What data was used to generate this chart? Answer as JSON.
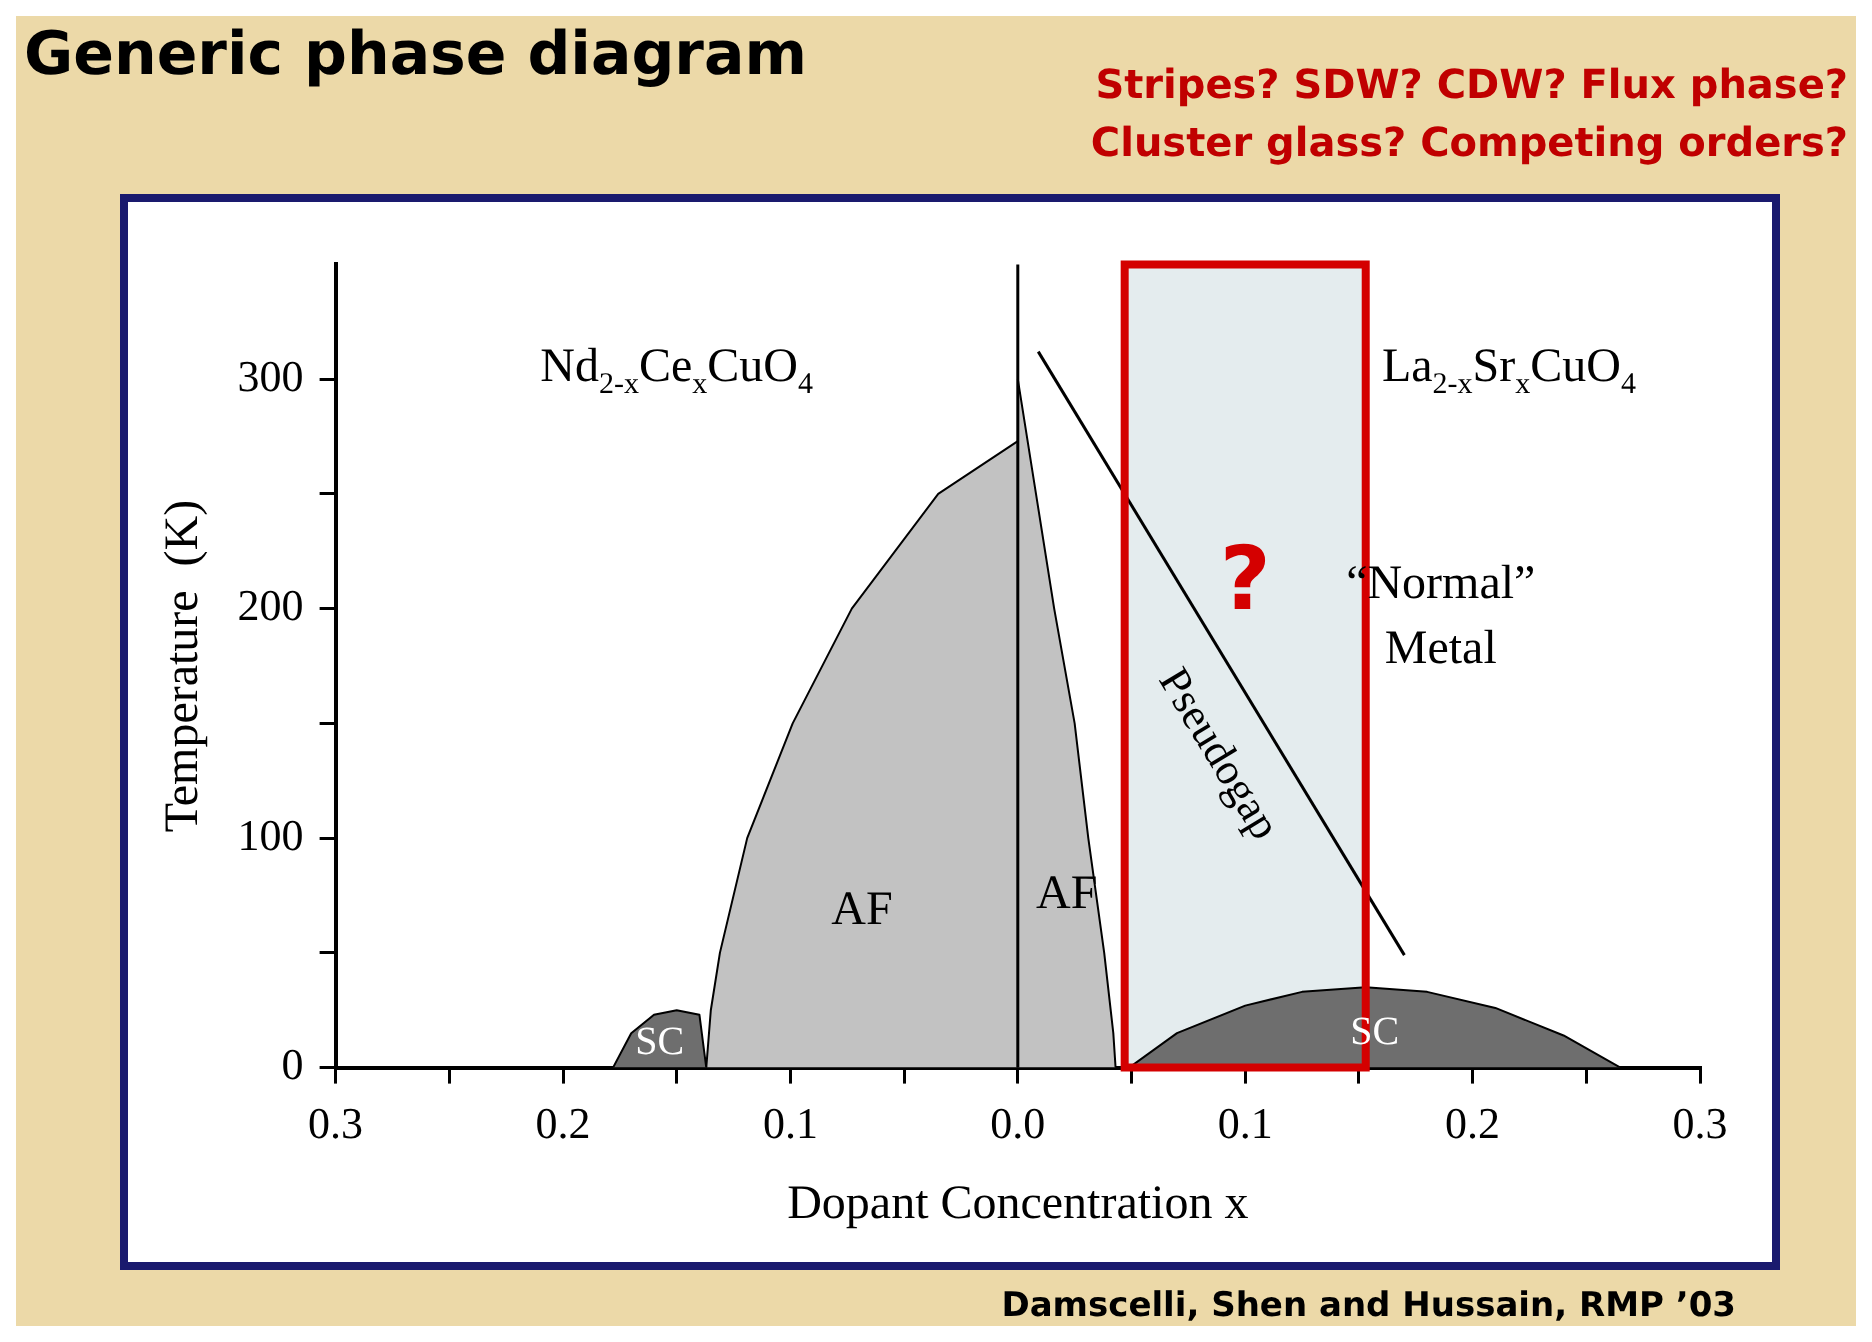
{
  "chart_data": {
    "type": "area",
    "title": "Generic phase diagram",
    "subtitle": "Stripes? SDW? CDW?  Flux phase? Cluster glass? Competing orders?",
    "xlabel": "Dopant Concentration x",
    "ylabel": "Temperature  (K)",
    "series": [
      {
        "name": "SC",
        "color": "#6e6e6e",
        "x": [
          -0.178,
          -0.17,
          -0.16,
          -0.15,
          -0.14,
          -0.137
        ],
        "values": [
          0,
          15,
          23,
          25,
          23,
          0
        ]
      },
      {
        "name": "AF",
        "color": "#c2c2c2",
        "x": [
          -0.137,
          -0.135,
          -0.131,
          -0.119,
          -0.099,
          -0.073,
          -0.035,
          0
        ],
        "values": [
          0,
          25,
          50,
          100,
          150,
          200,
          250,
          273
        ]
      },
      {
        "name": "AF",
        "color": "#c2c2c2",
        "x": [
          0,
          0.008,
          0.016,
          0.025,
          0.031,
          0.038,
          0.042,
          0.043
        ],
        "values": [
          300,
          250,
          200,
          150,
          100,
          50,
          15,
          0
        ]
      },
      {
        "name": "SC",
        "color": "#6e6e6e",
        "x": [
          0.049,
          0.07,
          0.1,
          0.125,
          0.153,
          0.18,
          0.21,
          0.24,
          0.265
        ],
        "values": [
          0,
          15,
          27,
          33,
          35,
          33,
          26,
          14,
          0
        ]
      },
      {
        "type": "line",
        "name": "Pseudogap",
        "color": "#000000",
        "x": [
          0.009,
          0.17
        ],
        "values": [
          312,
          49
        ]
      }
    ],
    "xlim": [
      -0.3,
      0.3
    ],
    "ylim": [
      0,
      350
    ],
    "xticks": [
      {
        "value": -0.3,
        "label": "0.3"
      },
      {
        "value": -0.25,
        "label": null
      },
      {
        "value": -0.2,
        "label": "0.2"
      },
      {
        "value": -0.15,
        "label": null
      },
      {
        "value": -0.1,
        "label": "0.1"
      },
      {
        "value": -0.05,
        "label": null
      },
      {
        "value": 0,
        "label": "0.0"
      },
      {
        "value": 0.05,
        "label": null
      },
      {
        "value": 0.1,
        "label": "0.1"
      },
      {
        "value": 0.15,
        "label": null
      },
      {
        "value": 0.2,
        "label": "0.2"
      },
      {
        "value": 0.25,
        "label": null
      },
      {
        "value": 0.3,
        "label": "0.3"
      }
    ],
    "yticks": [
      0,
      {
        "value": 50,
        "label": null
      },
      100,
      {
        "value": 150,
        "label": null
      },
      200,
      {
        "value": 250,
        "label": null
      },
      300
    ],
    "ref_lines": [
      {
        "axis": "x",
        "value": 0,
        "color": "#000000"
      }
    ],
    "bands": [
      {
        "axis": "x",
        "from": 0.047,
        "to": 0.153,
        "label": "?",
        "color": "#e4ecee"
      }
    ],
    "annotations": [
      "Nd$_{2-x}$Ce$_{x}$CuO$_{4}$",
      "La$_{2-x}$Sr$_{x}$CuO$_{4}$",
      "“Normal”",
      "Metal",
      "Damscelli, Shen and Hussain, RMP ’03"
    ],
    "legend": false,
    "grid": false
  }
}
